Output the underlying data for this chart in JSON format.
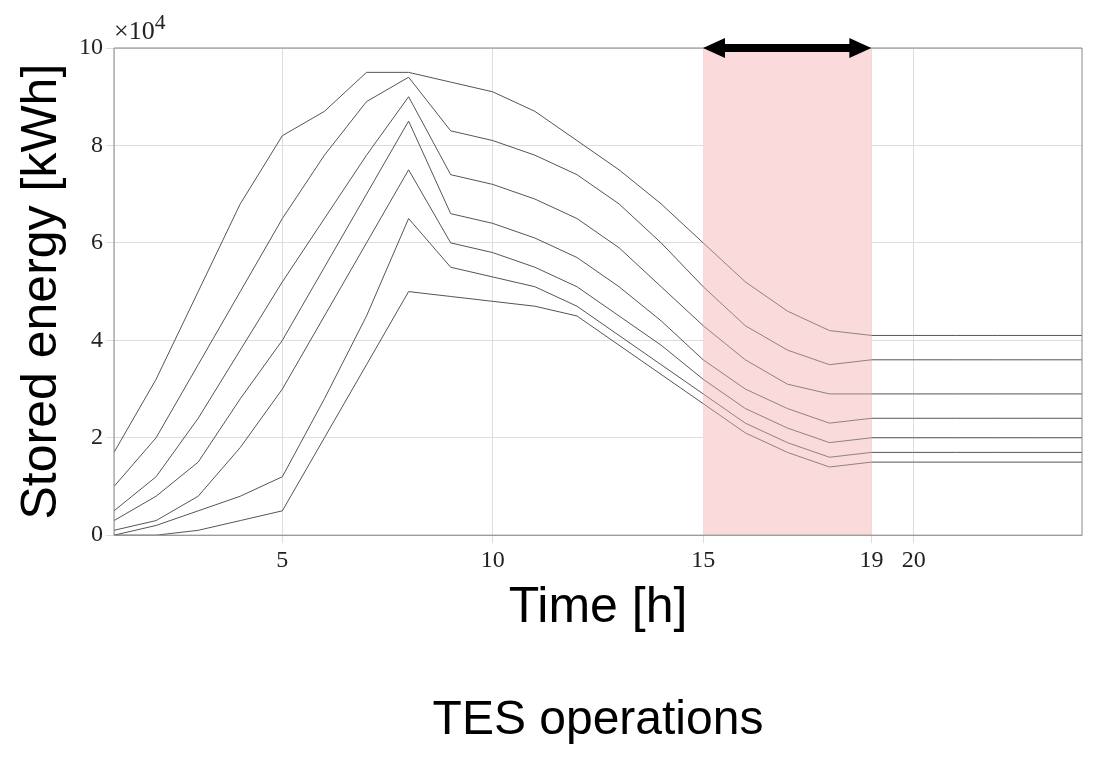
{
  "chart_data": {
    "type": "line",
    "xlabel": "Time [h]",
    "ylabel": "Stored energy [kWh]",
    "annotations": [
      "×10$^{4}$",
      "TES operations"
    ],
    "x": [
      1,
      2,
      3,
      4,
      5,
      6,
      7,
      8,
      9,
      10,
      11,
      12,
      13,
      14,
      15,
      16,
      17,
      18,
      19,
      20,
      21,
      22,
      23,
      24
    ],
    "series": [
      {
        "color": "#555555",
        "values": [
          1.7,
          3.2,
          5.0,
          6.8,
          8.2,
          8.7,
          9.5,
          9.5,
          9.3,
          9.1,
          8.7,
          8.1,
          7.5,
          6.8,
          6.0,
          5.2,
          4.6,
          4.2,
          4.1,
          4.1,
          4.1,
          4.1,
          4.1,
          4.1
        ]
      },
      {
        "color": "#555555",
        "values": [
          1.0,
          2.0,
          3.5,
          5.0,
          6.5,
          7.8,
          8.9,
          9.4,
          8.3,
          8.1,
          7.8,
          7.4,
          6.8,
          6.0,
          5.1,
          4.3,
          3.8,
          3.5,
          3.6,
          3.6,
          3.6,
          3.6,
          3.6,
          3.6
        ]
      },
      {
        "color": "#555555",
        "values": [
          0.5,
          1.2,
          2.4,
          3.8,
          5.2,
          6.5,
          7.8,
          9.0,
          7.4,
          7.2,
          6.9,
          6.5,
          5.9,
          5.1,
          4.3,
          3.6,
          3.1,
          2.9,
          2.9,
          2.9,
          2.9,
          2.9,
          2.9,
          2.9
        ]
      },
      {
        "color": "#555555",
        "values": [
          0.3,
          0.8,
          1.5,
          2.8,
          4.0,
          5.5,
          7.0,
          8.5,
          6.6,
          6.4,
          6.1,
          5.7,
          5.1,
          4.4,
          3.6,
          3.0,
          2.6,
          2.3,
          2.4,
          2.4,
          2.4,
          2.4,
          2.4,
          2.4
        ]
      },
      {
        "color": "#555555",
        "values": [
          0.1,
          0.3,
          0.8,
          1.8,
          3.0,
          4.5,
          6.0,
          7.5,
          6.0,
          5.8,
          5.5,
          5.1,
          4.5,
          3.9,
          3.2,
          2.6,
          2.2,
          1.9,
          2.0,
          2.0,
          2.0,
          2.0,
          2.0,
          2.0
        ]
      },
      {
        "color": "#555555",
        "values": [
          0,
          0.2,
          0.5,
          0.8,
          1.2,
          2.8,
          4.5,
          6.5,
          5.5,
          5.3,
          5.1,
          4.7,
          4.1,
          3.5,
          2.9,
          2.3,
          1.9,
          1.6,
          1.7,
          1.7,
          1.7,
          1.7,
          1.7,
          1.7
        ]
      },
      {
        "color": "#555555",
        "values": [
          0,
          0,
          0.1,
          0.3,
          0.5,
          2.0,
          3.5,
          5.0,
          4.9,
          4.8,
          4.7,
          4.5,
          3.9,
          3.3,
          2.7,
          2.1,
          1.7,
          1.4,
          1.5,
          1.5,
          1.5,
          1.5,
          1.5,
          1.5
        ]
      }
    ],
    "xlim": [
      1,
      24
    ],
    "xticks": [
      5,
      10,
      15,
      19,
      20
    ],
    "ylim": [
      0,
      10
    ],
    "yticks": [
      0,
      2,
      4,
      6,
      8,
      10
    ],
    "bands": [
      {
        "axis": "x",
        "from": 15,
        "to": 19,
        "color": "#fadadb"
      }
    ],
    "grid": true,
    "legend": false,
    "marker": "none",
    "line_style": "solid"
  }
}
